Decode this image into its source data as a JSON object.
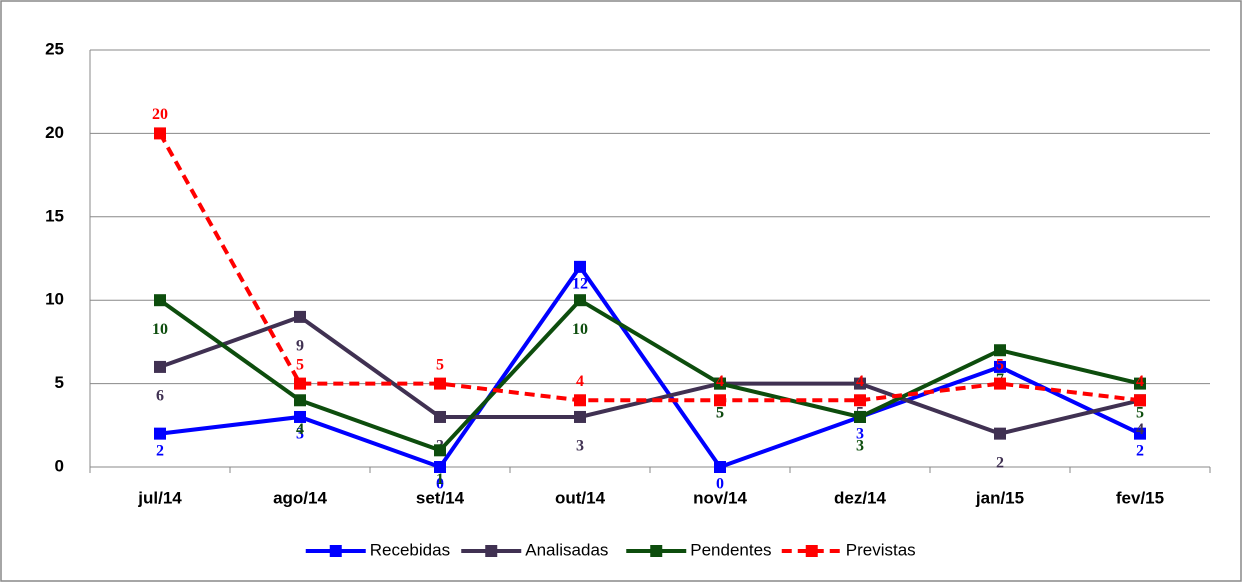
{
  "chart_data": {
    "type": "line",
    "categories": [
      "jul/14",
      "ago/14",
      "set/14",
      "out/14",
      "nov/14",
      "dez/14",
      "jan/15",
      "fev/15"
    ],
    "series": [
      {
        "name": "Recebidas",
        "color": "#0000ff",
        "values": [
          2,
          3,
          0,
          12,
          0,
          3,
          6,
          2
        ]
      },
      {
        "name": "Analisadas",
        "color": "#403152",
        "values": [
          6,
          9,
          3,
          3,
          5,
          5,
          2,
          4
        ]
      },
      {
        "name": "Pendentes",
        "color": "#0d4d0d",
        "values": [
          10,
          4,
          1,
          10,
          5,
          3,
          7,
          5
        ]
      },
      {
        "name": "Previstas",
        "color": "#ff0000",
        "values": [
          20,
          5,
          5,
          4,
          4,
          4,
          5,
          4
        ],
        "dashed": true
      }
    ],
    "ylim": [
      0,
      25
    ],
    "yticks": [
      0,
      5,
      10,
      15,
      20,
      25
    ],
    "grid": true,
    "legend": "bottom"
  }
}
